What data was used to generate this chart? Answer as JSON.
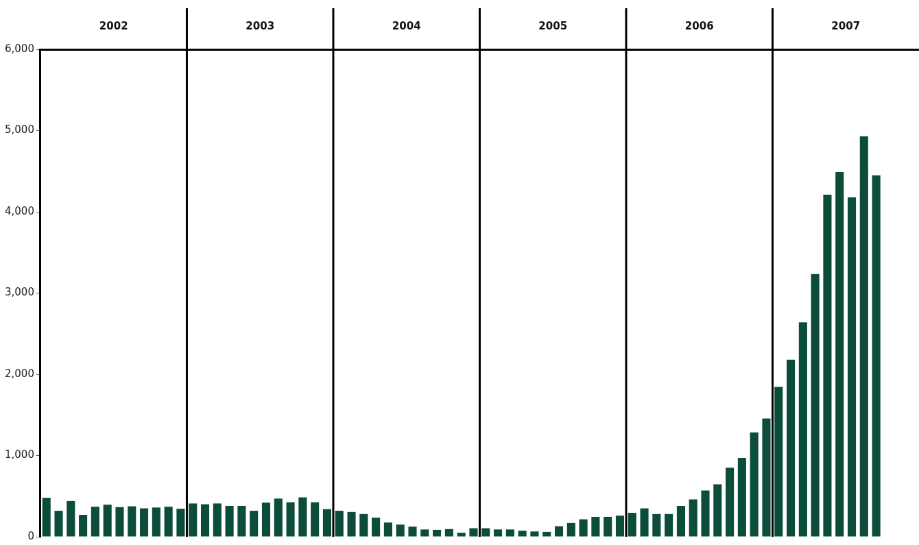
{
  "chart_data": {
    "type": "bar",
    "x": [
      "2002-01-16",
      "2002-02-16",
      "2002-03-16",
      "2002-04-16",
      "2002-05-16",
      "2002-06-16",
      "2002-07-16",
      "2002-08-16",
      "2002-09-16",
      "2002-10-16",
      "2002-11-16",
      "2002-12-16",
      "2003-01-16",
      "2003-02-16",
      "2003-03-16",
      "2003-04-16",
      "2003-05-16",
      "2003-06-16",
      "2003-07-16",
      "2003-08-16",
      "2003-09-16",
      "2003-10-16",
      "2003-11-16",
      "2003-12-16",
      "2004-01-16",
      "2004-02-16",
      "2004-03-16",
      "2004-04-16",
      "2004-05-16",
      "2004-06-16",
      "2004-07-16",
      "2004-08-16",
      "2004-09-16",
      "2004-10-16",
      "2004-11-16",
      "2004-12-16",
      "2005-01-16",
      "2005-02-16",
      "2005-03-16",
      "2005-04-16",
      "2005-05-16",
      "2005-06-16",
      "2005-07-16",
      "2005-08-16",
      "2005-09-16",
      "2005-10-16",
      "2005-11-16",
      "2005-12-16",
      "2006-01-16",
      "2006-02-16",
      "2006-03-16",
      "2006-04-16",
      "2006-05-16",
      "2006-06-16",
      "2006-07-16",
      "2006-08-16",
      "2006-09-16",
      "2006-10-16",
      "2006-11-16",
      "2006-12-16",
      "2007-01-16",
      "2007-02-16",
      "2007-03-16",
      "2007-04-16",
      "2007-05-16",
      "2007-06-16",
      "2007-07-16",
      "2007-08-16",
      "2007-09-16"
    ],
    "values": [
      480,
      320,
      440,
      270,
      370,
      395,
      365,
      375,
      350,
      360,
      370,
      345,
      410,
      400,
      410,
      380,
      380,
      320,
      420,
      470,
      425,
      485,
      425,
      340,
      320,
      305,
      280,
      235,
      175,
      150,
      125,
      90,
      85,
      95,
      50,
      105,
      105,
      90,
      90,
      75,
      65,
      60,
      130,
      170,
      215,
      245,
      245,
      260,
      295,
      350,
      280,
      280,
      380,
      460,
      570,
      645,
      850,
      970,
      1285,
      1455,
      1845,
      2180,
      2640,
      3235,
      4210,
      4490,
      4180,
      4930,
      4450
    ],
    "color": "#0b4d3a",
    "xlim": [
      "2002-01",
      "2008-01"
    ],
    "xticks": [
      {
        "value": "2002-07",
        "label": "2002"
      },
      {
        "value": "2003-07",
        "label": "2003"
      },
      {
        "value": "2004-07",
        "label": "2004"
      },
      {
        "value": "2005-07",
        "label": "2005"
      },
      {
        "value": "2006-07",
        "label": "2006"
      },
      {
        "value": "2007-07",
        "label": "2007"
      }
    ],
    "ylim": [
      0,
      6000
    ],
    "yticks": [
      0,
      {
        "value": 1000,
        "label": "1,000"
      },
      {
        "value": 2000,
        "label": "2,000"
      },
      {
        "value": 3000,
        "label": "3,000"
      },
      {
        "value": 4000,
        "label": "4,000"
      },
      {
        "value": 5000,
        "label": "5,000"
      },
      {
        "value": 6000,
        "label": "6,000"
      }
    ],
    "ref_lines": [
      {
        "axis": "x",
        "value": "2003-01",
        "color": "#000000"
      },
      {
        "axis": "x",
        "value": "2004-01",
        "color": "#000000"
      },
      {
        "axis": "x",
        "value": "2005-01",
        "color": "#000000"
      },
      {
        "axis": "x",
        "value": "2006-01",
        "color": "#000000"
      },
      {
        "axis": "x",
        "value": "2007-01",
        "color": "#000000"
      }
    ],
    "grid": false,
    "legend": false
  }
}
